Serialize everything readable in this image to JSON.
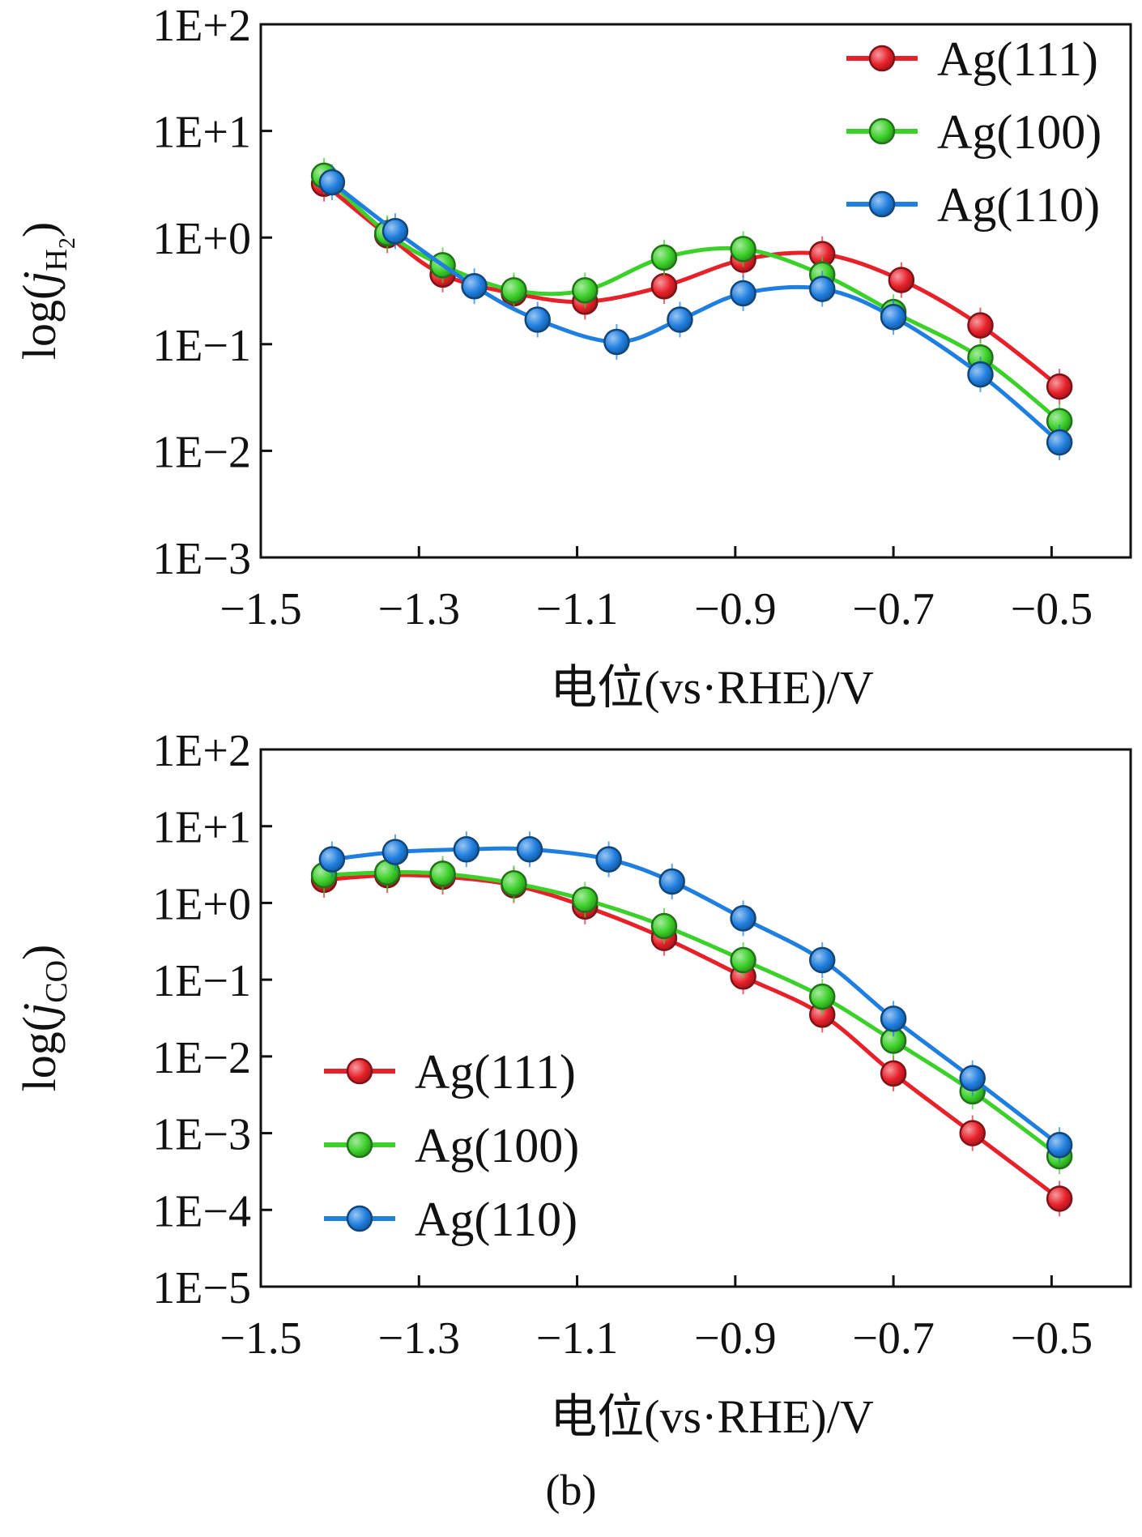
{
  "panel_label": "(b)",
  "colors": {
    "Ag(111)": "#e8202a",
    "Ag(100)": "#3cd12a",
    "Ag(110)": "#1f7fe0"
  },
  "chart_data": [
    {
      "type": "line",
      "scale_y": "log",
      "title": "",
      "ylabel": "log(jH2)",
      "ylabel_main": "j",
      "ylabel_sub": "H",
      "ylabel_subsub": "2",
      "xlabel": "电位(vs·RHE)/V",
      "xlim": [
        -1.5,
        -0.4
      ],
      "ylim_exp": [
        -3,
        2
      ],
      "x_ticks": [
        -1.5,
        -1.3,
        -1.1,
        -0.9,
        -0.7,
        -0.5
      ],
      "x_tick_labels": [
        "−1.5",
        "−1.3",
        "−1.1",
        "−0.9",
        "−0.7",
        "−0.5"
      ],
      "y_tick_labels": [
        "1E+2",
        "1E+1",
        "1E+0",
        "1E−1",
        "1E−2",
        "1E−3"
      ],
      "legend": {
        "placement": "top-right",
        "entries": [
          "Ag(111)",
          "Ag(100)",
          "Ag(110)"
        ]
      },
      "series": [
        {
          "name": "Ag(111)",
          "x": [
            -1.42,
            -1.34,
            -1.27,
            -1.18,
            -1.09,
            -0.99,
            -0.89,
            -0.79,
            -0.69,
            -0.59,
            -0.49
          ],
          "y": [
            3.2,
            1.05,
            0.45,
            0.3,
            0.25,
            0.35,
            0.62,
            0.7,
            0.4,
            0.15,
            0.04
          ]
        },
        {
          "name": "Ag(100)",
          "x": [
            -1.42,
            -1.34,
            -1.27,
            -1.18,
            -1.09,
            -0.99,
            -0.89,
            -0.79,
            -0.7,
            -0.59,
            -0.49
          ],
          "y": [
            3.8,
            1.1,
            0.55,
            0.32,
            0.32,
            0.65,
            0.78,
            0.45,
            0.2,
            0.075,
            0.019
          ]
        },
        {
          "name": "Ag(110)",
          "x": [
            -1.41,
            -1.33,
            -1.23,
            -1.15,
            -1.05,
            -0.97,
            -0.89,
            -0.79,
            -0.7,
            -0.59,
            -0.49
          ],
          "y": [
            3.3,
            1.15,
            0.35,
            0.17,
            0.105,
            0.17,
            0.3,
            0.33,
            0.18,
            0.052,
            0.012
          ]
        }
      ]
    },
    {
      "type": "line",
      "scale_y": "log",
      "title": "",
      "ylabel": "log(jCO)",
      "ylabel_main": "j",
      "ylabel_sub": "CO",
      "ylabel_subsub": "",
      "xlabel": "电位(vs·RHE)/V",
      "xlim": [
        -1.5,
        -0.4
      ],
      "ylim_exp": [
        -5,
        2
      ],
      "x_ticks": [
        -1.5,
        -1.3,
        -1.1,
        -0.9,
        -0.7,
        -0.5
      ],
      "x_tick_labels": [
        "−1.5",
        "−1.3",
        "−1.1",
        "−0.9",
        "−0.7",
        "−0.5"
      ],
      "y_tick_labels": [
        "1E+2",
        "1E+1",
        "1E+0",
        "1E−1",
        "1E−2",
        "1E−3",
        "1E−4",
        "1E−5"
      ],
      "legend": {
        "placement": "bottom-left",
        "entries": [
          "Ag(111)",
          "Ag(100)",
          "Ag(110)"
        ]
      },
      "series": [
        {
          "name": "Ag(111)",
          "x": [
            -1.42,
            -1.34,
            -1.27,
            -1.18,
            -1.09,
            -0.99,
            -0.89,
            -0.79,
            -0.7,
            -0.6,
            -0.49
          ],
          "y": [
            2.0,
            2.3,
            2.2,
            1.7,
            0.9,
            0.35,
            0.11,
            0.035,
            0.006,
            0.001,
            0.00014
          ]
        },
        {
          "name": "Ag(100)",
          "x": [
            -1.42,
            -1.34,
            -1.27,
            -1.18,
            -1.09,
            -0.99,
            -0.89,
            -0.79,
            -0.7,
            -0.6,
            -0.49
          ],
          "y": [
            2.3,
            2.5,
            2.4,
            1.8,
            1.1,
            0.5,
            0.18,
            0.06,
            0.016,
            0.0035,
            0.0005
          ]
        },
        {
          "name": "Ag(110)",
          "x": [
            -1.41,
            -1.33,
            -1.24,
            -1.16,
            -1.06,
            -0.98,
            -0.89,
            -0.79,
            -0.7,
            -0.6,
            -0.49
          ],
          "y": [
            3.7,
            4.6,
            5.0,
            5.0,
            3.7,
            1.9,
            0.63,
            0.18,
            0.031,
            0.0052,
            0.0007
          ]
        }
      ]
    }
  ]
}
